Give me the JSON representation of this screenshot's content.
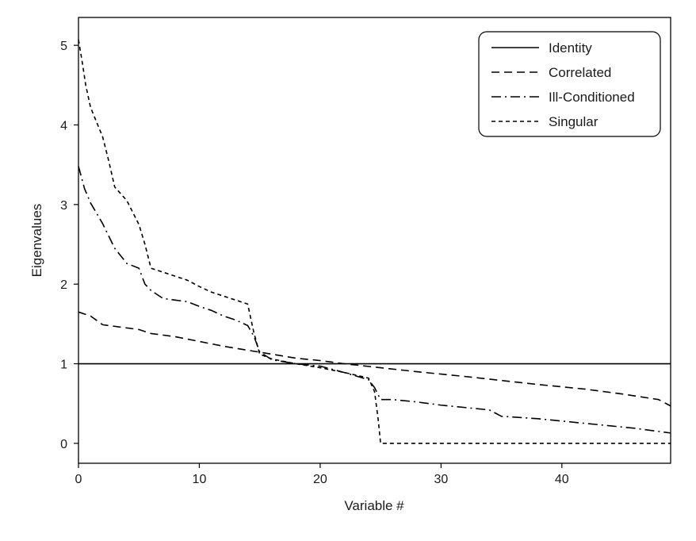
{
  "chart_data": {
    "type": "line",
    "xlabel": "Variable #",
    "ylabel": "Eigenvalues",
    "xlim": [
      0,
      49
    ],
    "ylim": [
      -0.25,
      5.35
    ],
    "xticks": [
      0,
      10,
      20,
      30,
      40
    ],
    "yticks": [
      0,
      1,
      2,
      3,
      4,
      5
    ],
    "grid": false,
    "legend_position": "top-right",
    "series": [
      {
        "name": "Identity",
        "style": "solid",
        "color": "#000000",
        "x": [
          0,
          49
        ],
        "y": [
          1,
          1
        ]
      },
      {
        "name": "Correlated",
        "style": "dashed",
        "color": "#000000",
        "x": [
          0,
          1,
          2,
          3,
          5,
          6,
          8,
          10,
          12,
          14,
          16,
          18,
          20,
          22,
          25,
          28,
          30,
          32,
          35,
          38,
          40,
          42,
          45,
          48,
          49
        ],
        "y": [
          1.65,
          1.6,
          1.49,
          1.47,
          1.43,
          1.38,
          1.34,
          1.28,
          1.22,
          1.17,
          1.12,
          1.07,
          1.04,
          1.0,
          0.95,
          0.9,
          0.87,
          0.84,
          0.79,
          0.74,
          0.71,
          0.68,
          0.62,
          0.55,
          0.47
        ]
      },
      {
        "name": "Ill-Conditioned",
        "style": "dashdot",
        "color": "#000000",
        "x": [
          0,
          0.5,
          1,
          2,
          3,
          4,
          5,
          5.5,
          6,
          7,
          8,
          9,
          10,
          11,
          12,
          13,
          14,
          14.5,
          15,
          16,
          18,
          20,
          22,
          24,
          24.5,
          25,
          26,
          28,
          30,
          32,
          34,
          35,
          38,
          40,
          42,
          44,
          46,
          48,
          49
        ],
        "y": [
          3.48,
          3.2,
          3.02,
          2.76,
          2.45,
          2.26,
          2.2,
          2.0,
          1.92,
          1.82,
          1.8,
          1.78,
          1.72,
          1.67,
          1.6,
          1.55,
          1.48,
          1.35,
          1.15,
          1.05,
          1.0,
          0.97,
          0.89,
          0.8,
          0.7,
          0.55,
          0.55,
          0.52,
          0.48,
          0.45,
          0.42,
          0.34,
          0.31,
          0.28,
          0.25,
          0.22,
          0.19,
          0.15,
          0.13
        ]
      },
      {
        "name": "Singular",
        "style": "dotted",
        "color": "#000000",
        "x": [
          0,
          0.3,
          0.6,
          1,
          2,
          2.5,
          3,
          4,
          5,
          5.5,
          6,
          7,
          8,
          9,
          10,
          11,
          12,
          13,
          14,
          14.5,
          15,
          16,
          18,
          20,
          22,
          24,
          24.5,
          24.8,
          25,
          30,
          40,
          49
        ],
        "y": [
          5.07,
          4.8,
          4.5,
          4.22,
          3.85,
          3.55,
          3.22,
          3.05,
          2.75,
          2.5,
          2.2,
          2.15,
          2.1,
          2.05,
          1.97,
          1.9,
          1.85,
          1.8,
          1.75,
          1.4,
          1.12,
          1.06,
          1.0,
          0.95,
          0.89,
          0.82,
          0.65,
          0.3,
          0.0,
          0.0,
          0.0,
          0.0
        ]
      }
    ]
  }
}
